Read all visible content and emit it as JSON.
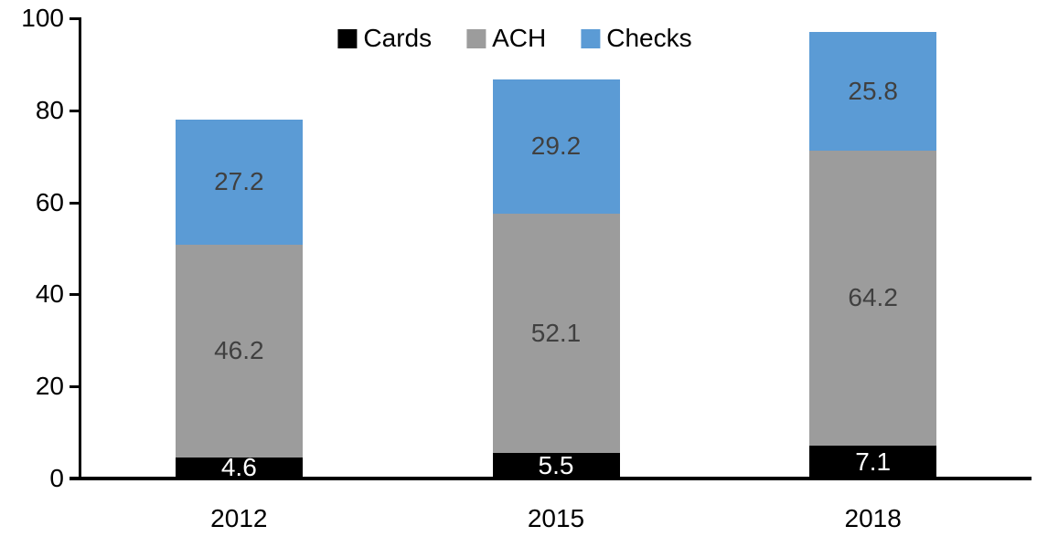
{
  "chart_data": {
    "type": "bar",
    "stacked": true,
    "title": "",
    "xlabel": "",
    "ylabel": "",
    "categories": [
      "2012",
      "2015",
      "2018"
    ],
    "series": [
      {
        "name": "Cards",
        "color": "#000000",
        "label_color": "#ffffff",
        "values": [
          4.6,
          5.5,
          7.1
        ]
      },
      {
        "name": "ACH",
        "color": "#9C9C9C",
        "label_color": "#404040",
        "values": [
          46.2,
          52.1,
          64.2
        ]
      },
      {
        "name": "Checks",
        "color": "#5B9BD5",
        "label_color": "#404040",
        "values": [
          27.2,
          29.2,
          25.8
        ]
      }
    ],
    "totals": [
      78.0,
      86.8,
      97.1
    ],
    "y_ticks": [
      0,
      20,
      40,
      60,
      80,
      100
    ],
    "ylim": [
      0,
      100
    ],
    "grid": false,
    "legend_position": "top-center",
    "data_labels": true,
    "axis_color": "#000000"
  }
}
